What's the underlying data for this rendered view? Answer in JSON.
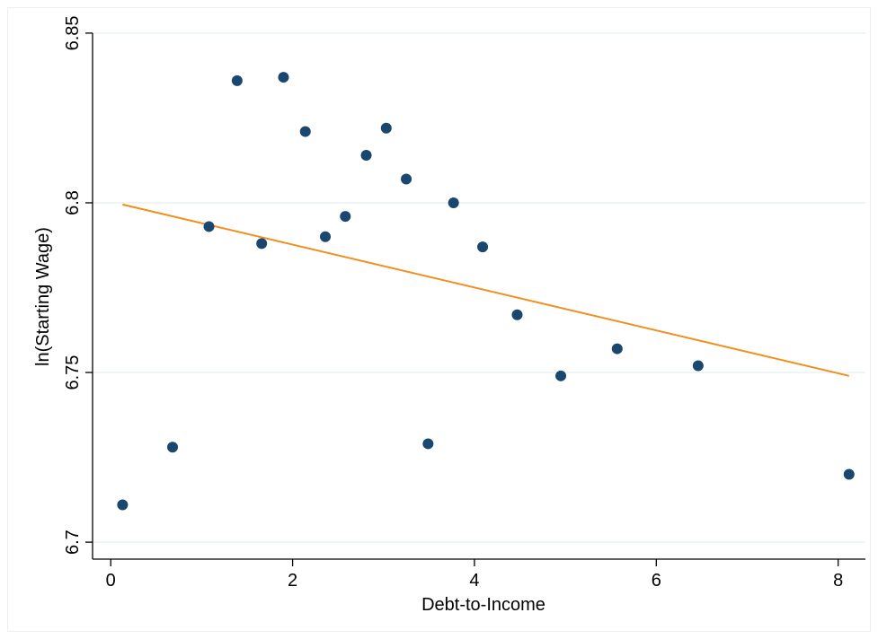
{
  "chart_data": {
    "type": "scatter",
    "xlabel": "Debt-to-Income",
    "ylabel": "ln(Starting Wage)",
    "xlim": [
      -0.2,
      8.3
    ],
    "ylim": [
      6.695,
      6.855
    ],
    "x_ticks": [
      0,
      2,
      4,
      6,
      8
    ],
    "x_tick_labels": [
      "0",
      "2",
      "4",
      "6",
      "8"
    ],
    "y_ticks": [
      6.7,
      6.75,
      6.8,
      6.85
    ],
    "y_tick_labels": [
      "6.7",
      "6.75",
      "6.8",
      "6.85"
    ],
    "grid": "horizontal",
    "legend": "none",
    "points": {
      "x": [
        0.13,
        0.68,
        1.08,
        1.39,
        1.66,
        1.9,
        2.14,
        2.36,
        2.58,
        2.81,
        3.03,
        3.25,
        3.49,
        3.77,
        4.09,
        4.47,
        4.95,
        5.57,
        6.46,
        8.12
      ],
      "y": [
        6.711,
        6.728,
        6.793,
        6.836,
        6.788,
        6.837,
        6.821,
        6.79,
        6.796,
        6.814,
        6.822,
        6.807,
        6.729,
        6.8,
        6.787,
        6.767,
        6.749,
        6.757,
        6.752,
        6.72
      ]
    },
    "fit_line": {
      "x": [
        0.13,
        8.12
      ],
      "y": [
        6.7995,
        6.749
      ]
    },
    "colors": {
      "points": "#1a476f",
      "fit_line": "#f28e1c",
      "grid": "#eaf2f3",
      "axis": "#000000"
    }
  }
}
